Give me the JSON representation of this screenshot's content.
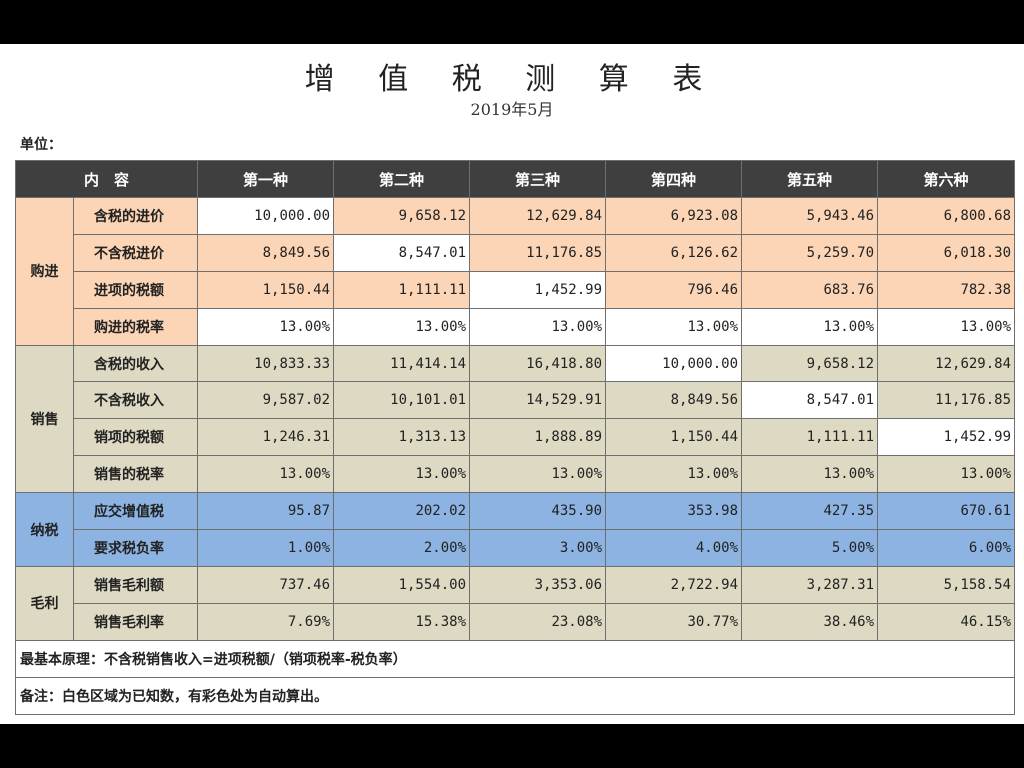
{
  "title": "增 值 税 测 算 表",
  "subtitle": "2019年5月",
  "unit_label": "单位：",
  "headers": [
    "内　容",
    "第一种",
    "第二种",
    "第三种",
    "第四种",
    "第五种",
    "第六种"
  ],
  "groups": [
    {
      "name": "购进",
      "rows": [
        {
          "label": "含税的进价",
          "values": [
            "10,000.00",
            "9,658.12",
            "12,629.84",
            "6,923.08",
            "5,943.46",
            "6,800.68"
          ]
        },
        {
          "label": "不含税进价",
          "values": [
            "8,849.56",
            "8,547.01",
            "11,176.85",
            "6,126.62",
            "5,259.70",
            "6,018.30"
          ]
        },
        {
          "label": "进项的税额",
          "values": [
            "1,150.44",
            "1,111.11",
            "1,452.99",
            "796.46",
            "683.76",
            "782.38"
          ]
        },
        {
          "label": "购进的税率",
          "values": [
            "13.00%",
            "13.00%",
            "13.00%",
            "13.00%",
            "13.00%",
            "13.00%"
          ]
        }
      ]
    },
    {
      "name": "销售",
      "rows": [
        {
          "label": "含税的收入",
          "values": [
            "10,833.33",
            "11,414.14",
            "16,418.80",
            "10,000.00",
            "9,658.12",
            "12,629.84"
          ]
        },
        {
          "label": "不含税收入",
          "values": [
            "9,587.02",
            "10,101.01",
            "14,529.91",
            "8,849.56",
            "8,547.01",
            "11,176.85"
          ]
        },
        {
          "label": "销项的税额",
          "values": [
            "1,246.31",
            "1,313.13",
            "1,888.89",
            "1,150.44",
            "1,111.11",
            "1,452.99"
          ]
        },
        {
          "label": "销售的税率",
          "values": [
            "13.00%",
            "13.00%",
            "13.00%",
            "13.00%",
            "13.00%",
            "13.00%"
          ]
        }
      ]
    },
    {
      "name": "纳税",
      "rows": [
        {
          "label": "应交增值税",
          "values": [
            "95.87",
            "202.02",
            "435.90",
            "353.98",
            "427.35",
            "670.61"
          ]
        },
        {
          "label": "要求税负率",
          "values": [
            "1.00%",
            "2.00%",
            "3.00%",
            "4.00%",
            "5.00%",
            "6.00%"
          ]
        }
      ]
    },
    {
      "name": "毛利",
      "rows": [
        {
          "label": "销售毛利额",
          "values": [
            "737.46",
            "1,554.00",
            "3,353.06",
            "2,722.94",
            "3,287.31",
            "5,158.54"
          ]
        },
        {
          "label": "销售毛利率",
          "values": [
            "7.69%",
            "15.38%",
            "23.08%",
            "30.77%",
            "38.46%",
            "46.15%"
          ]
        }
      ]
    }
  ],
  "note_principle": "最基本原理：不含税销售收入=进项税额/（销项税率-税负率）",
  "note_remark": "备注：白色区域为已知数，有彩色处为自动算出。",
  "colors": {
    "header_bg": "#3f3f3f",
    "purchase_bg": "#fbd5b5",
    "sales_bg": "#ddd9c3",
    "tax_bg": "#8db3e2",
    "profit_bg": "#ddd9c3",
    "known_input_bg": "#ffffff"
  }
}
